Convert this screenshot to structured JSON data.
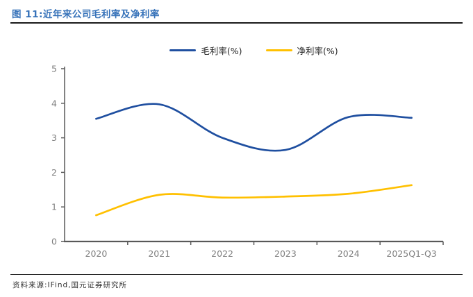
{
  "figure": {
    "title": "图 11:近年来公司毛利率及净利率",
    "source": "资料来源:IFind,国元证券研究所"
  },
  "chart_data": {
    "type": "line",
    "title": "近年来公司毛利率及净利率",
    "categories": [
      "2020",
      "2021",
      "2022",
      "2023",
      "2024",
      "2025Q1-Q3"
    ],
    "series": [
      {
        "name": "毛利率(%)",
        "key": "gross-margin",
        "color": "#1F4FA0",
        "values": [
          3.55,
          3.97,
          3.0,
          2.65,
          3.6,
          3.58
        ]
      },
      {
        "name": "净利率(%)",
        "key": "net-margin",
        "color": "#FFC000",
        "values": [
          0.76,
          1.35,
          1.27,
          1.3,
          1.38,
          1.63
        ]
      }
    ],
    "ylim": [
      0,
      5
    ],
    "y_ticks": [
      0,
      1,
      2,
      3,
      4,
      5
    ],
    "xlabel": "",
    "ylabel": "",
    "grid": false,
    "smooth": true,
    "legend_position": "top",
    "axis_color": "#595959",
    "tick_label_color": "#7F7F7F"
  }
}
